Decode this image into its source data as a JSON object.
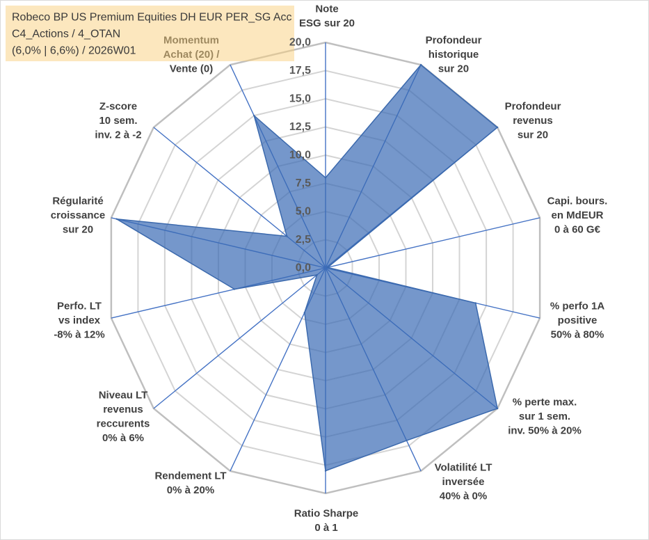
{
  "chart_data": {
    "type": "radar",
    "title": [
      "Robeco BP US Premium Equities DH EUR PER_SG Acc",
      "C4_Actions / 4_OTAN",
      "(6,0% | 6,6%) / 2026W01"
    ],
    "categories": [
      [
        "Note",
        "ESG sur 20"
      ],
      [
        "Profondeur",
        "historique",
        "sur 20"
      ],
      [
        "Profondeur",
        "revenus",
        "sur 20"
      ],
      [
        "Capi. bours.",
        "en MdEUR",
        "0 à 60 G€"
      ],
      [
        "% perfo 1A",
        "positive",
        "50% à 80%"
      ],
      [
        "% perte max.",
        "sur 1 sem.",
        "inv. 50% à 20%"
      ],
      [
        "Volatilité LT",
        "inversée",
        "40% à 0%"
      ],
      [
        "Ratio Sharpe",
        "0 à 1"
      ],
      [
        "Rendement LT",
        "0% à 20%"
      ],
      [
        "Niveau LT",
        "revenus",
        "reccurents",
        "0% à 6%"
      ],
      [
        "Perfo. LT",
        "vs index",
        "-8% à 12%"
      ],
      [
        "Régularité",
        "croissance",
        "sur 20"
      ],
      [
        "Z-score",
        "10 sem.",
        "inv. 2 à -2"
      ],
      [
        "Momentum",
        "Achat (20) /",
        "Vente (0)"
      ]
    ],
    "values": [
      8,
      20,
      20,
      0.2,
      14,
      20,
      17,
      18,
      4.4,
      1,
      8.5,
      19.5,
      4.5,
      15
    ],
    "rlim": [
      0,
      20
    ],
    "r_ticks": [
      0,
      2.5,
      5,
      7.5,
      10,
      12.5,
      15,
      17.5,
      20
    ],
    "r_tick_labels": [
      "0,0",
      "2,5",
      "5,0",
      "7,5",
      "10,0",
      "12,5",
      "15,0",
      "17,5",
      "20,0"
    ],
    "grid": true,
    "colors": {
      "series_fill": "#3a6bb5",
      "series_line": "#3b69ad",
      "spokes": "#4472c4",
      "grid": "#d4d4d4",
      "outer_ring": "#bfbfbf",
      "title_box": "#f9cf7d",
      "border": "#d9d9d9"
    }
  }
}
